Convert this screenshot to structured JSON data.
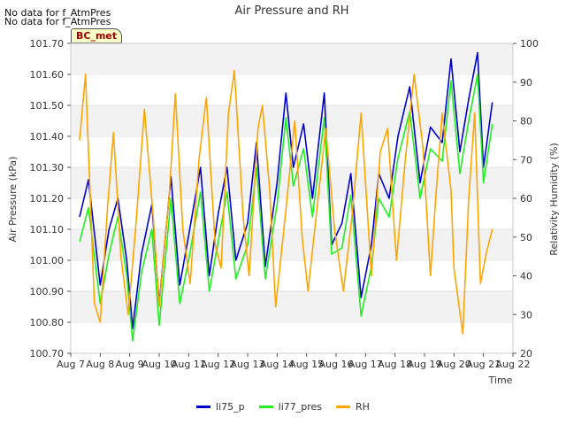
{
  "notes": [
    "No data for f_AtmPres",
    "No data for f_AtmPres"
  ],
  "badge": "BC_met",
  "chart_data": {
    "type": "line",
    "title": "Air Pressure and RH",
    "xlabel": "Time",
    "ylabel": "Air Pressure (kPa)",
    "y2label": "Relativity Humidity (%)",
    "xlim": [
      7,
      22
    ],
    "ylim": [
      100.7,
      101.7
    ],
    "y2lim": [
      20,
      100
    ],
    "x_tick_labels": [
      "Aug 7",
      "Aug 8",
      "Aug 9",
      "Aug 10",
      "Aug 11",
      "Aug 12",
      "Aug 13",
      "Aug 14",
      "Aug 15",
      "Aug 16",
      "Aug 17",
      "Aug 18",
      "Aug 19",
      "Aug 20",
      "Aug 21",
      "Aug 22"
    ],
    "y_tick_labels": [
      "100.70",
      "100.80",
      "100.90",
      "101.00",
      "101.10",
      "101.20",
      "101.30",
      "101.40",
      "101.50",
      "101.60",
      "101.70"
    ],
    "y2_tick_labels": [
      "20",
      "30",
      "40",
      "50",
      "60",
      "70",
      "80",
      "90",
      "100"
    ],
    "bands": "alternating grey",
    "legend_position": "bottom",
    "series": [
      {
        "name": "li75_p",
        "axis": "left",
        "color": "#0000cc",
        "x": [
          7.3,
          7.6,
          8.0,
          8.3,
          8.6,
          8.9,
          9.1,
          9.4,
          9.75,
          10.0,
          10.4,
          10.7,
          11.0,
          11.4,
          11.7,
          12.0,
          12.3,
          12.6,
          13.0,
          13.3,
          13.6,
          14.0,
          14.3,
          14.55,
          14.9,
          15.2,
          15.6,
          15.85,
          16.2,
          16.5,
          16.85,
          17.2,
          17.45,
          17.8,
          18.1,
          18.5,
          18.85,
          19.2,
          19.6,
          19.9,
          20.2,
          20.5,
          20.8,
          21.0,
          21.3
        ],
        "y": [
          101.14,
          101.26,
          100.92,
          101.1,
          101.2,
          101.0,
          100.78,
          101.02,
          101.18,
          100.86,
          101.27,
          100.92,
          101.08,
          101.3,
          100.95,
          101.15,
          101.3,
          101.0,
          101.12,
          101.38,
          100.98,
          101.25,
          101.54,
          101.3,
          101.44,
          101.2,
          101.54,
          101.05,
          101.12,
          101.28,
          100.88,
          101.05,
          101.28,
          101.2,
          101.4,
          101.56,
          101.25,
          101.43,
          101.38,
          101.65,
          101.35,
          101.52,
          101.67,
          101.3,
          101.51
        ]
      },
      {
        "name": "li77_pres",
        "axis": "left",
        "color": "#22ee22",
        "x": [
          7.3,
          7.6,
          8.0,
          8.3,
          8.6,
          8.9,
          9.1,
          9.4,
          9.75,
          10.0,
          10.4,
          10.7,
          11.0,
          11.4,
          11.7,
          12.0,
          12.3,
          12.6,
          13.0,
          13.3,
          13.6,
          14.0,
          14.3,
          14.55,
          14.9,
          15.2,
          15.6,
          15.85,
          16.2,
          16.5,
          16.85,
          17.2,
          17.45,
          17.8,
          18.1,
          18.5,
          18.85,
          19.2,
          19.6,
          19.9,
          20.2,
          20.5,
          20.8,
          21.0,
          21.3
        ],
        "y": [
          101.06,
          101.17,
          100.86,
          101.02,
          101.14,
          100.95,
          100.74,
          100.96,
          101.1,
          100.79,
          101.2,
          100.86,
          101.0,
          101.22,
          100.9,
          101.06,
          101.22,
          100.94,
          101.05,
          101.3,
          100.94,
          101.18,
          101.46,
          101.24,
          101.36,
          101.14,
          101.46,
          101.02,
          101.04,
          101.21,
          100.82,
          100.98,
          101.2,
          101.14,
          101.33,
          101.48,
          101.2,
          101.36,
          101.32,
          101.58,
          101.28,
          101.45,
          101.6,
          101.25,
          101.44
        ]
      },
      {
        "name": "RH",
        "axis": "right",
        "color": "#ffa500",
        "x": [
          7.3,
          7.5,
          7.8,
          8.0,
          8.25,
          8.45,
          8.7,
          8.95,
          9.2,
          9.5,
          9.8,
          10.0,
          10.35,
          10.55,
          10.8,
          11.05,
          11.35,
          11.6,
          11.9,
          12.1,
          12.35,
          12.55,
          12.85,
          13.05,
          13.35,
          13.5,
          13.75,
          13.95,
          14.3,
          14.6,
          14.85,
          15.05,
          15.35,
          15.65,
          15.95,
          16.25,
          16.55,
          16.85,
          17.2,
          17.5,
          17.75,
          18.05,
          18.35,
          18.65,
          18.95,
          19.2,
          19.4,
          19.6,
          19.9,
          20.0,
          20.3,
          20.5,
          20.7,
          20.9,
          21.1,
          21.3
        ],
        "y": [
          75,
          92,
          33,
          28,
          58,
          77,
          45,
          30,
          52,
          83,
          55,
          32,
          62,
          87,
          52,
          38,
          70,
          86,
          48,
          42,
          82,
          93,
          55,
          40,
          78,
          84,
          62,
          32,
          57,
          80,
          50,
          36,
          57,
          78,
          52,
          36,
          56,
          82,
          40,
          72,
          78,
          44,
          70,
          92,
          73,
          40,
          62,
          82,
          62,
          42,
          25,
          60,
          82,
          38,
          46,
          52
        ]
      }
    ]
  }
}
